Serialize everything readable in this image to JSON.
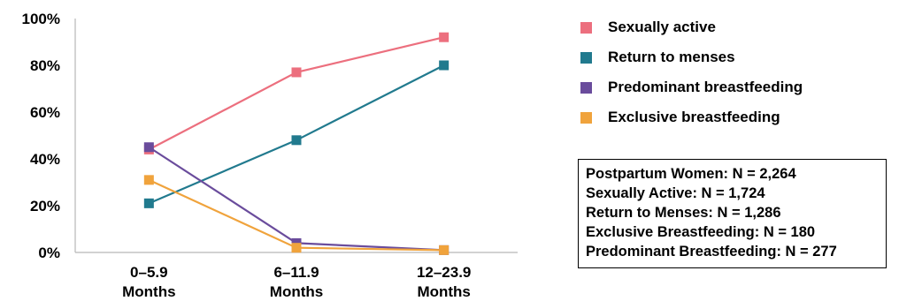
{
  "chart_data": {
    "type": "line",
    "categories": [
      [
        "0–5.9",
        "Months"
      ],
      [
        "6–11.9",
        "Months"
      ],
      [
        "12–23.9",
        "Months"
      ]
    ],
    "y_ticks": [
      "0%",
      "20%",
      "40%",
      "60%",
      "80%",
      "100%"
    ],
    "ylim": [
      0,
      100
    ],
    "grid": false,
    "legend_position": "right",
    "series": [
      {
        "name": "Sexually active",
        "color": "#EC6F7E",
        "values": [
          44,
          77,
          92
        ]
      },
      {
        "name": "Return to menses",
        "color": "#217A8E",
        "values": [
          21,
          48,
          80
        ]
      },
      {
        "name": "Predominant breastfeeding",
        "color": "#6A4C9C",
        "values": [
          45,
          4,
          1
        ]
      },
      {
        "name": "Exclusive breastfeeding",
        "color": "#F0A33C",
        "values": [
          31,
          2,
          1
        ]
      }
    ]
  },
  "notes": [
    "Postpartum Women: N = 2,264",
    "Sexually Active: N = 1,724",
    "Return to Menses: N = 1,286",
    "Exclusive Breastfeeding: N = 180",
    "Predominant Breastfeeding: N = 277"
  ]
}
